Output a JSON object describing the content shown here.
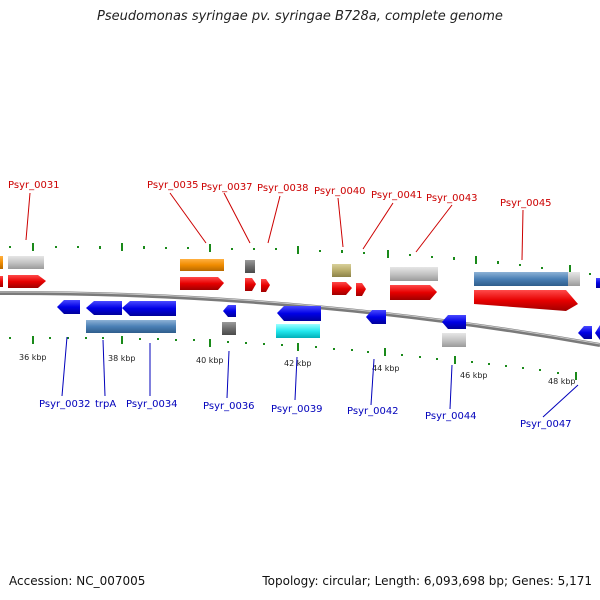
{
  "title": "Pseudomonas syringae pv. syringae B728a, complete genome",
  "footer": {
    "accession": "Accession: NC_007005",
    "summary": "Topology: circular; Length: 6,093,698 bp; Genes: 5,171"
  },
  "colors": {
    "forward_label": "#cc0000",
    "reverse_label": "#0000bb",
    "tick": "#1a8a1a",
    "backbone": "#808080"
  },
  "forward_labels": [
    "Psyr_0031",
    "Psyr_0035",
    "Psyr_0037",
    "Psyr_0038",
    "Psyr_0040",
    "Psyr_0041",
    "Psyr_0043",
    "Psyr_0045"
  ],
  "reverse_labels": [
    "Psyr_0032",
    "trpA",
    "Psyr_0034",
    "Psyr_0036",
    "Psyr_0039",
    "Psyr_0042",
    "Psyr_0044",
    "Psyr_0047"
  ],
  "kbp_labels": [
    "36 kbp",
    "38 kbp",
    "40 kbp",
    "42 kbp",
    "44 kbp",
    "46 kbp",
    "48 kbp"
  ]
}
